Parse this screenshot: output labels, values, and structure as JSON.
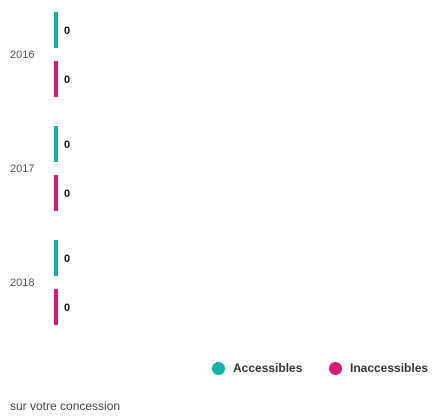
{
  "chart_data": {
    "type": "bar",
    "orientation": "horizontal",
    "categories": [
      "2016",
      "2017",
      "2018"
    ],
    "series": [
      {
        "name": "Accessibles",
        "values": [
          0,
          0,
          0
        ],
        "color": "#12b2a9"
      },
      {
        "name": "Inaccessibles",
        "values": [
          0,
          0,
          0
        ],
        "color": "#d81b7a"
      }
    ],
    "data_labels": true,
    "legend_position": "bottom-right",
    "grid": false
  },
  "legend": {
    "items": [
      {
        "label": "Accessibles",
        "color": "#12b2a9"
      },
      {
        "label": "Inaccessibles",
        "color": "#d81b7a"
      }
    ]
  },
  "footnote": "sur votre concession"
}
